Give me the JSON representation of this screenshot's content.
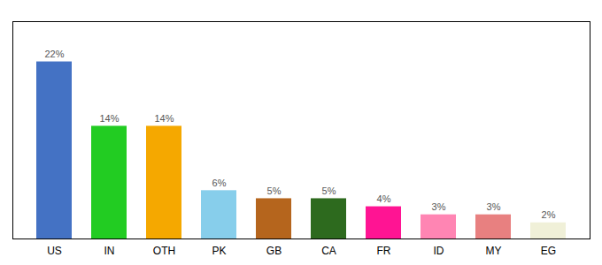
{
  "chart_data": {
    "type": "bar",
    "categories": [
      "US",
      "IN",
      "OTH",
      "PK",
      "GB",
      "CA",
      "FR",
      "ID",
      "MY",
      "EG"
    ],
    "values": [
      22,
      14,
      14,
      6,
      5,
      5,
      4,
      3,
      3,
      2
    ],
    "value_labels": [
      "22%",
      "14%",
      "14%",
      "6%",
      "5%",
      "5%",
      "4%",
      "3%",
      "3%",
      "2%"
    ],
    "colors": [
      "#4472c4",
      "#22cc22",
      "#f5a800",
      "#87ceeb",
      "#b5651d",
      "#2d6a1e",
      "#ff1493",
      "#ff85b3",
      "#e88080",
      "#f0f0d8"
    ],
    "ylim": [
      0,
      27
    ],
    "grid": false,
    "data_labels": true,
    "tick_labels": "x"
  }
}
